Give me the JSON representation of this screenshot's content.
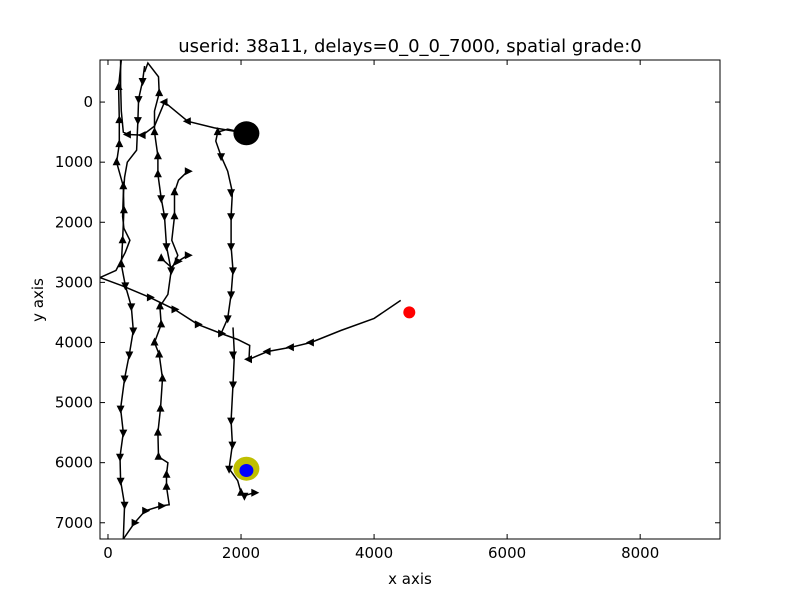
{
  "chart_data": {
    "type": "line",
    "title": "userid: 38a11, delays=0_0_0_7000, spatial grade:0",
    "xlabel": "x axis",
    "ylabel": "y axis",
    "xlim": [
      -120,
      9200
    ],
    "ylim": [
      7270,
      -700
    ],
    "y_inverted": true,
    "grid": false,
    "x_ticks": [
      0,
      2000,
      4000,
      6000,
      8000
    ],
    "y_ticks": [
      0,
      1000,
      2000,
      3000,
      4000,
      5000,
      6000,
      7000
    ],
    "tick_labels_x": [
      "0",
      "2000",
      "4000",
      "6000",
      "8000"
    ],
    "tick_labels_y": [
      "0",
      "1000",
      "2000",
      "3000",
      "4000",
      "5000",
      "6000",
      "7000"
    ],
    "colors": {
      "path": "#000000",
      "start_marker": "#000000",
      "target_marker": "#ff0000",
      "goal_outer": "#bfbf00",
      "goal_inner": "#0000ff"
    },
    "markers": [
      {
        "name": "start",
        "x": 2080,
        "y": 520,
        "color": "#000000",
        "size": "large"
      },
      {
        "name": "target",
        "x": 4530,
        "y": 3500,
        "color": "#ff0000",
        "size": "small"
      },
      {
        "name": "goal-outer",
        "x": 2080,
        "y": 6100,
        "color": "#bfbf00",
        "size": "large"
      },
      {
        "name": "goal-inner",
        "x": 2080,
        "y": 6130,
        "color": "#0000ff",
        "size": "small"
      }
    ],
    "series": [
      {
        "values_xy": [
          [
            2080,
            520
          ],
          [
            1600,
            430
          ],
          [
            1200,
            320
          ],
          [
            850,
            0
          ],
          [
            700,
            400
          ],
          [
            520,
            550
          ],
          [
            300,
            540
          ],
          [
            230,
            500
          ],
          [
            200,
            150
          ],
          [
            190,
            -300
          ],
          [
            190,
            -700
          ]
        ]
      },
      {
        "values_xy": [
          [
            550,
            -600
          ],
          [
            520,
            -350
          ],
          [
            460,
            -50
          ],
          [
            450,
            300
          ],
          [
            430,
            800
          ],
          [
            290,
            1000
          ],
          [
            250,
            1250
          ],
          [
            230,
            1550
          ],
          [
            220,
            1900
          ],
          [
            240,
            2100
          ],
          [
            330,
            2300
          ],
          [
            260,
            2500
          ],
          [
            120,
            2800
          ],
          [
            -120,
            2920
          ],
          [
            200,
            3050
          ],
          [
            630,
            3250
          ],
          [
            1000,
            3450
          ],
          [
            1350,
            3700
          ],
          [
            1700,
            3850
          ],
          [
            1950,
            3950
          ],
          [
            2130,
            4050
          ],
          [
            2120,
            4280
          ],
          [
            2400,
            4150
          ],
          [
            2750,
            4080
          ],
          [
            3050,
            4000
          ],
          [
            3500,
            3800
          ],
          [
            4000,
            3600
          ],
          [
            4400,
            3300
          ]
        ]
      },
      {
        "values_xy": [
          [
            200,
            -700
          ],
          [
            160,
            -250
          ],
          [
            170,
            300
          ],
          [
            170,
            700
          ],
          [
            130,
            1000
          ],
          [
            230,
            1400
          ],
          [
            240,
            1800
          ],
          [
            220,
            2300
          ],
          [
            200,
            2700
          ],
          [
            260,
            3050
          ],
          [
            350,
            3400
          ],
          [
            380,
            3800
          ],
          [
            320,
            4200
          ],
          [
            250,
            4600
          ],
          [
            190,
            5100
          ],
          [
            230,
            5500
          ],
          [
            180,
            5900
          ],
          [
            190,
            6300
          ],
          [
            250,
            6700
          ],
          [
            240,
            7000
          ],
          [
            230,
            7270
          ]
        ]
      },
      {
        "values_xy": [
          [
            230,
            7270
          ],
          [
            400,
            7000
          ],
          [
            560,
            6800
          ],
          [
            800,
            6720
          ],
          [
            920,
            6700
          ],
          [
            880,
            6400
          ],
          [
            880,
            6200
          ],
          [
            900,
            6000
          ],
          [
            760,
            5900
          ],
          [
            750,
            5500
          ],
          [
            790,
            5100
          ],
          [
            820,
            4600
          ],
          [
            770,
            4200
          ],
          [
            700,
            4000
          ],
          [
            800,
            3700
          ],
          [
            780,
            3400
          ],
          [
            900,
            3200
          ],
          [
            950,
            2800
          ],
          [
            880,
            2400
          ],
          [
            850,
            1900
          ],
          [
            800,
            1600
          ],
          [
            750,
            1200
          ],
          [
            750,
            900
          ],
          [
            700,
            500
          ],
          [
            700,
            150
          ],
          [
            770,
            -150
          ],
          [
            760,
            -420
          ],
          [
            600,
            -650
          ],
          [
            550,
            -500
          ]
        ]
      },
      {
        "values_xy": [
          [
            950,
            2800
          ],
          [
            1050,
            2550
          ],
          [
            960,
            2300
          ],
          [
            1000,
            1900
          ],
          [
            1000,
            1500
          ],
          [
            1060,
            1300
          ],
          [
            1200,
            1150
          ]
        ]
      },
      {
        "values_xy": [
          [
            1700,
            3850
          ],
          [
            1800,
            3600
          ],
          [
            1850,
            3200
          ],
          [
            1880,
            2800
          ],
          [
            1850,
            2400
          ],
          [
            1850,
            1900
          ],
          [
            1870,
            1500
          ],
          [
            1800,
            1150
          ],
          [
            1700,
            900
          ],
          [
            1620,
            650
          ],
          [
            1650,
            500
          ],
          [
            1800,
            450
          ],
          [
            2080,
            520
          ]
        ]
      },
      {
        "values_xy": [
          [
            1880,
            3750
          ],
          [
            1900,
            4200
          ],
          [
            1880,
            4700
          ],
          [
            1850,
            5300
          ],
          [
            1870,
            5700
          ],
          [
            1820,
            6100
          ],
          [
            1950,
            6300
          ],
          [
            2000,
            6500
          ],
          [
            2050,
            6550
          ],
          [
            2200,
            6500
          ]
        ]
      },
      {
        "values_xy": [
          [
            800,
            2600
          ],
          [
            950,
            2750
          ],
          [
            1050,
            2650
          ],
          [
            1200,
            2550
          ]
        ]
      }
    ],
    "arrows": [
      [
        160,
        -250,
        "up"
      ],
      [
        170,
        300,
        "up"
      ],
      [
        170,
        700,
        "up"
      ],
      [
        130,
        1000,
        "up"
      ],
      [
        230,
        1400,
        "up"
      ],
      [
        240,
        1800,
        "up"
      ],
      [
        220,
        2300,
        "up"
      ],
      [
        200,
        2700,
        "up"
      ],
      [
        260,
        3050,
        "down"
      ],
      [
        350,
        3400,
        "down"
      ],
      [
        380,
        3800,
        "down"
      ],
      [
        320,
        4200,
        "down"
      ],
      [
        250,
        4600,
        "down"
      ],
      [
        190,
        5100,
        "down"
      ],
      [
        230,
        5500,
        "down"
      ],
      [
        180,
        5900,
        "down"
      ],
      [
        190,
        6300,
        "down"
      ],
      [
        250,
        6700,
        "down"
      ],
      [
        520,
        -350,
        "down"
      ],
      [
        460,
        -50,
        "down"
      ],
      [
        450,
        300,
        "down"
      ],
      [
        750,
        1200,
        "up"
      ],
      [
        750,
        900,
        "up"
      ],
      [
        700,
        500,
        "up"
      ],
      [
        770,
        -150,
        "up"
      ],
      [
        800,
        1600,
        "down"
      ],
      [
        850,
        1900,
        "down"
      ],
      [
        880,
        2400,
        "down"
      ],
      [
        950,
        2800,
        "down"
      ],
      [
        1000,
        1900,
        "up"
      ],
      [
        1000,
        1500,
        "up"
      ],
      [
        1200,
        1150,
        "right"
      ],
      [
        1700,
        900,
        "down"
      ],
      [
        1650,
        500,
        "up"
      ],
      [
        1850,
        1500,
        "down"
      ],
      [
        1850,
        1900,
        "down"
      ],
      [
        1850,
        2400,
        "down"
      ],
      [
        1880,
        2800,
        "down"
      ],
      [
        1850,
        3200,
        "down"
      ],
      [
        1800,
        3600,
        "down"
      ],
      [
        1880,
        4200,
        "down"
      ],
      [
        1880,
        4700,
        "down"
      ],
      [
        1850,
        5300,
        "down"
      ],
      [
        1870,
        5700,
        "down"
      ],
      [
        1820,
        6100,
        "down"
      ],
      [
        2050,
        6550,
        "down"
      ],
      [
        2200,
        6500,
        "right"
      ],
      [
        2000,
        6500,
        "up"
      ],
      [
        1200,
        320,
        "left"
      ],
      [
        850,
        0,
        "left"
      ],
      [
        520,
        550,
        "left"
      ],
      [
        300,
        540,
        "left"
      ],
      [
        630,
        3250,
        "right"
      ],
      [
        1000,
        3450,
        "right"
      ],
      [
        1350,
        3700,
        "right"
      ],
      [
        1700,
        3850,
        "right"
      ],
      [
        2750,
        4080,
        "left"
      ],
      [
        3050,
        4000,
        "left"
      ],
      [
        2400,
        4150,
        "left"
      ],
      [
        2120,
        4280,
        "left"
      ],
      [
        880,
        6400,
        "up"
      ],
      [
        880,
        6200,
        "up"
      ],
      [
        760,
        5900,
        "up"
      ],
      [
        750,
        5500,
        "up"
      ],
      [
        790,
        5100,
        "up"
      ],
      [
        820,
        4600,
        "up"
      ],
      [
        770,
        4200,
        "up"
      ],
      [
        700,
        4000,
        "up"
      ],
      [
        800,
        3700,
        "up"
      ],
      [
        780,
        3400,
        "up"
      ],
      [
        400,
        7000,
        "right"
      ],
      [
        560,
        6800,
        "right"
      ],
      [
        800,
        6720,
        "right"
      ],
      [
        1050,
        2650,
        "right"
      ],
      [
        1200,
        2550,
        "right"
      ],
      [
        800,
        2600,
        "up"
      ]
    ]
  }
}
